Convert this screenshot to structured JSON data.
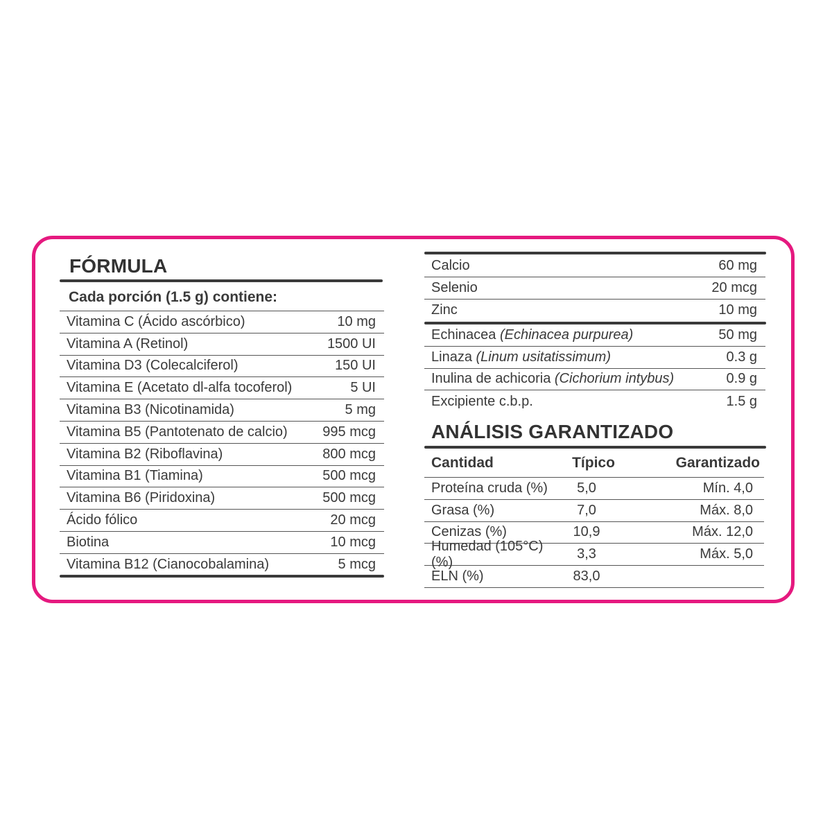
{
  "accent_color": "#e5197f",
  "formula": {
    "title": "FÓRMULA",
    "subtitle": "Cada porción (1.5 g) contiene:",
    "items": [
      {
        "name": "Vitamina C (Ácido ascórbico)",
        "value": "10 mg"
      },
      {
        "name": "Vitamina A (Retinol)",
        "value": "1500 UI"
      },
      {
        "name": "Vitamina D3 (Colecalciferol)",
        "value": "150 UI"
      },
      {
        "name": "Vitamina E (Acetato dl-alfa tocoferol)",
        "value": "5 UI"
      },
      {
        "name": "Vitamina B3 (Nicotinamida)",
        "value": "5 mg"
      },
      {
        "name": "Vitamina B5 (Pantotenato de calcio)",
        "value": "995 mcg"
      },
      {
        "name": "Vitamina B2 (Riboflavina)",
        "value": "800 mcg"
      },
      {
        "name": "Vitamina B1 (Tiamina)",
        "value": "500 mcg"
      },
      {
        "name": "Vitamina B6 (Piridoxina)",
        "value": "500 mcg"
      },
      {
        "name": "Ácido fólico",
        "value": "20 mcg"
      },
      {
        "name": "Biotina",
        "value": "10 mcg"
      },
      {
        "name": "Vitamina B12 (Cianocobalamina)",
        "value": "5 mcg"
      }
    ]
  },
  "minerals": [
    {
      "name": "Calcio",
      "value": "60 mg"
    },
    {
      "name": "Selenio",
      "value": "20 mcg"
    },
    {
      "name": "Zinc",
      "value": "10 mg"
    }
  ],
  "botanicals": [
    {
      "name": "Echinacea ",
      "latin": "(Echinacea purpurea)",
      "value": "50 mg"
    },
    {
      "name": "Linaza ",
      "latin": "(Linum usitatissimum)",
      "value": "0.3 g"
    },
    {
      "name": "Inulina de achicoria ",
      "latin": "(Cichorium intybus)",
      "value": "0.9 g"
    },
    {
      "name": "Excipiente c.b.p.",
      "latin": "",
      "value": "1.5 g"
    }
  ],
  "analysis": {
    "title": "ANÁLISIS GARANTIZADO",
    "headers": [
      "Cantidad",
      "Típico",
      "Garantizado"
    ],
    "rows": [
      [
        "Proteína cruda (%)",
        "5,0",
        "Mín. 4,0"
      ],
      [
        "Grasa (%)",
        "7,0",
        "Máx. 8,0"
      ],
      [
        "Cenizas (%)",
        "10,9",
        "Máx. 12,0"
      ],
      [
        "Humedad (105°C)(%)",
        "3,3",
        "Máx. 5,0"
      ],
      [
        "ELN (%)",
        "83,0",
        ""
      ]
    ]
  }
}
